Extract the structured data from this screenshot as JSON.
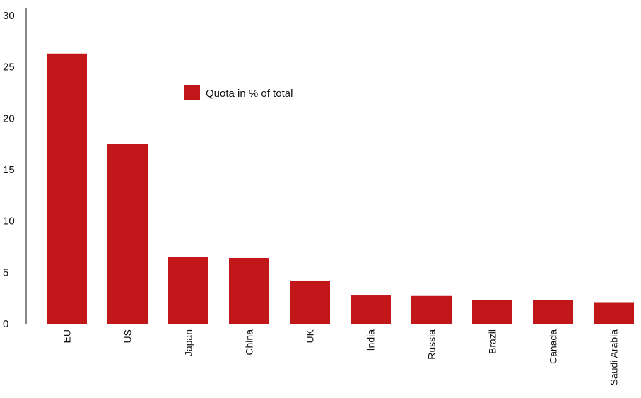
{
  "chart_data": {
    "type": "bar",
    "categories": [
      "EU",
      "US",
      "Japan",
      "China",
      "UK",
      "India",
      "Russia",
      "Brazil",
      "Canada",
      "Saudi Arabia"
    ],
    "series": [
      {
        "name": "Quota in % of total",
        "color": "#c1171a",
        "values": [
          26.3,
          17.5,
          6.5,
          6.4,
          4.2,
          2.75,
          2.7,
          2.3,
          2.3,
          2.1
        ]
      }
    ],
    "ylim": [
      0,
      30
    ],
    "yticks": [
      0,
      5,
      10,
      15,
      20,
      25,
      30
    ],
    "legend": {
      "label": "Quota in % of total",
      "placement": "top-center"
    },
    "grid": false
  }
}
